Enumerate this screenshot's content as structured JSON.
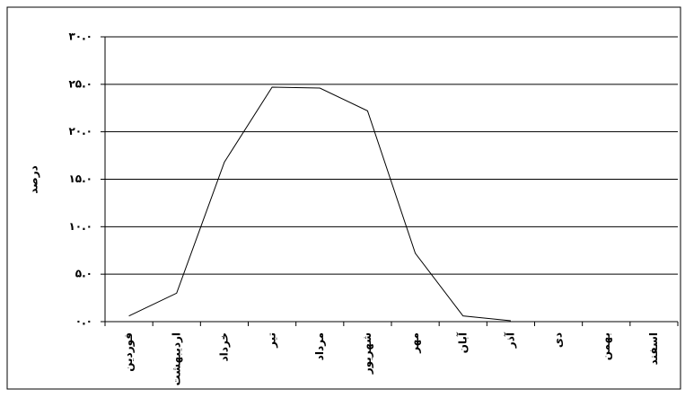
{
  "chart_data": {
    "type": "line",
    "y_label": "درصد",
    "categories": [
      "فوردین",
      "اردیبهشت",
      "خرداد",
      "تیر",
      "مرداد",
      "شهریور",
      "مهر",
      "آبان",
      "آذر",
      "دی",
      "بهمن",
      "اسفند"
    ],
    "series": [
      {
        "color": "#000000",
        "values": [
          0.6,
          3.0,
          16.8,
          24.7,
          24.6,
          22.2,
          7.2,
          0.6,
          0.1,
          null,
          null,
          null
        ]
      }
    ],
    "ylim": [
      0,
      30
    ],
    "yticks": [
      {
        "value": 0,
        "label": "۰.۰"
      },
      {
        "value": 5,
        "label": "۵.۰"
      },
      {
        "value": 10,
        "label": "۱۰.۰"
      },
      {
        "value": 15,
        "label": "۱۵.۰"
      },
      {
        "value": 20,
        "label": "۲۰.۰"
      },
      {
        "value": 25,
        "label": "۲۵.۰"
      },
      {
        "value": 30,
        "label": "۳۰.۰"
      }
    ],
    "grid": true
  }
}
